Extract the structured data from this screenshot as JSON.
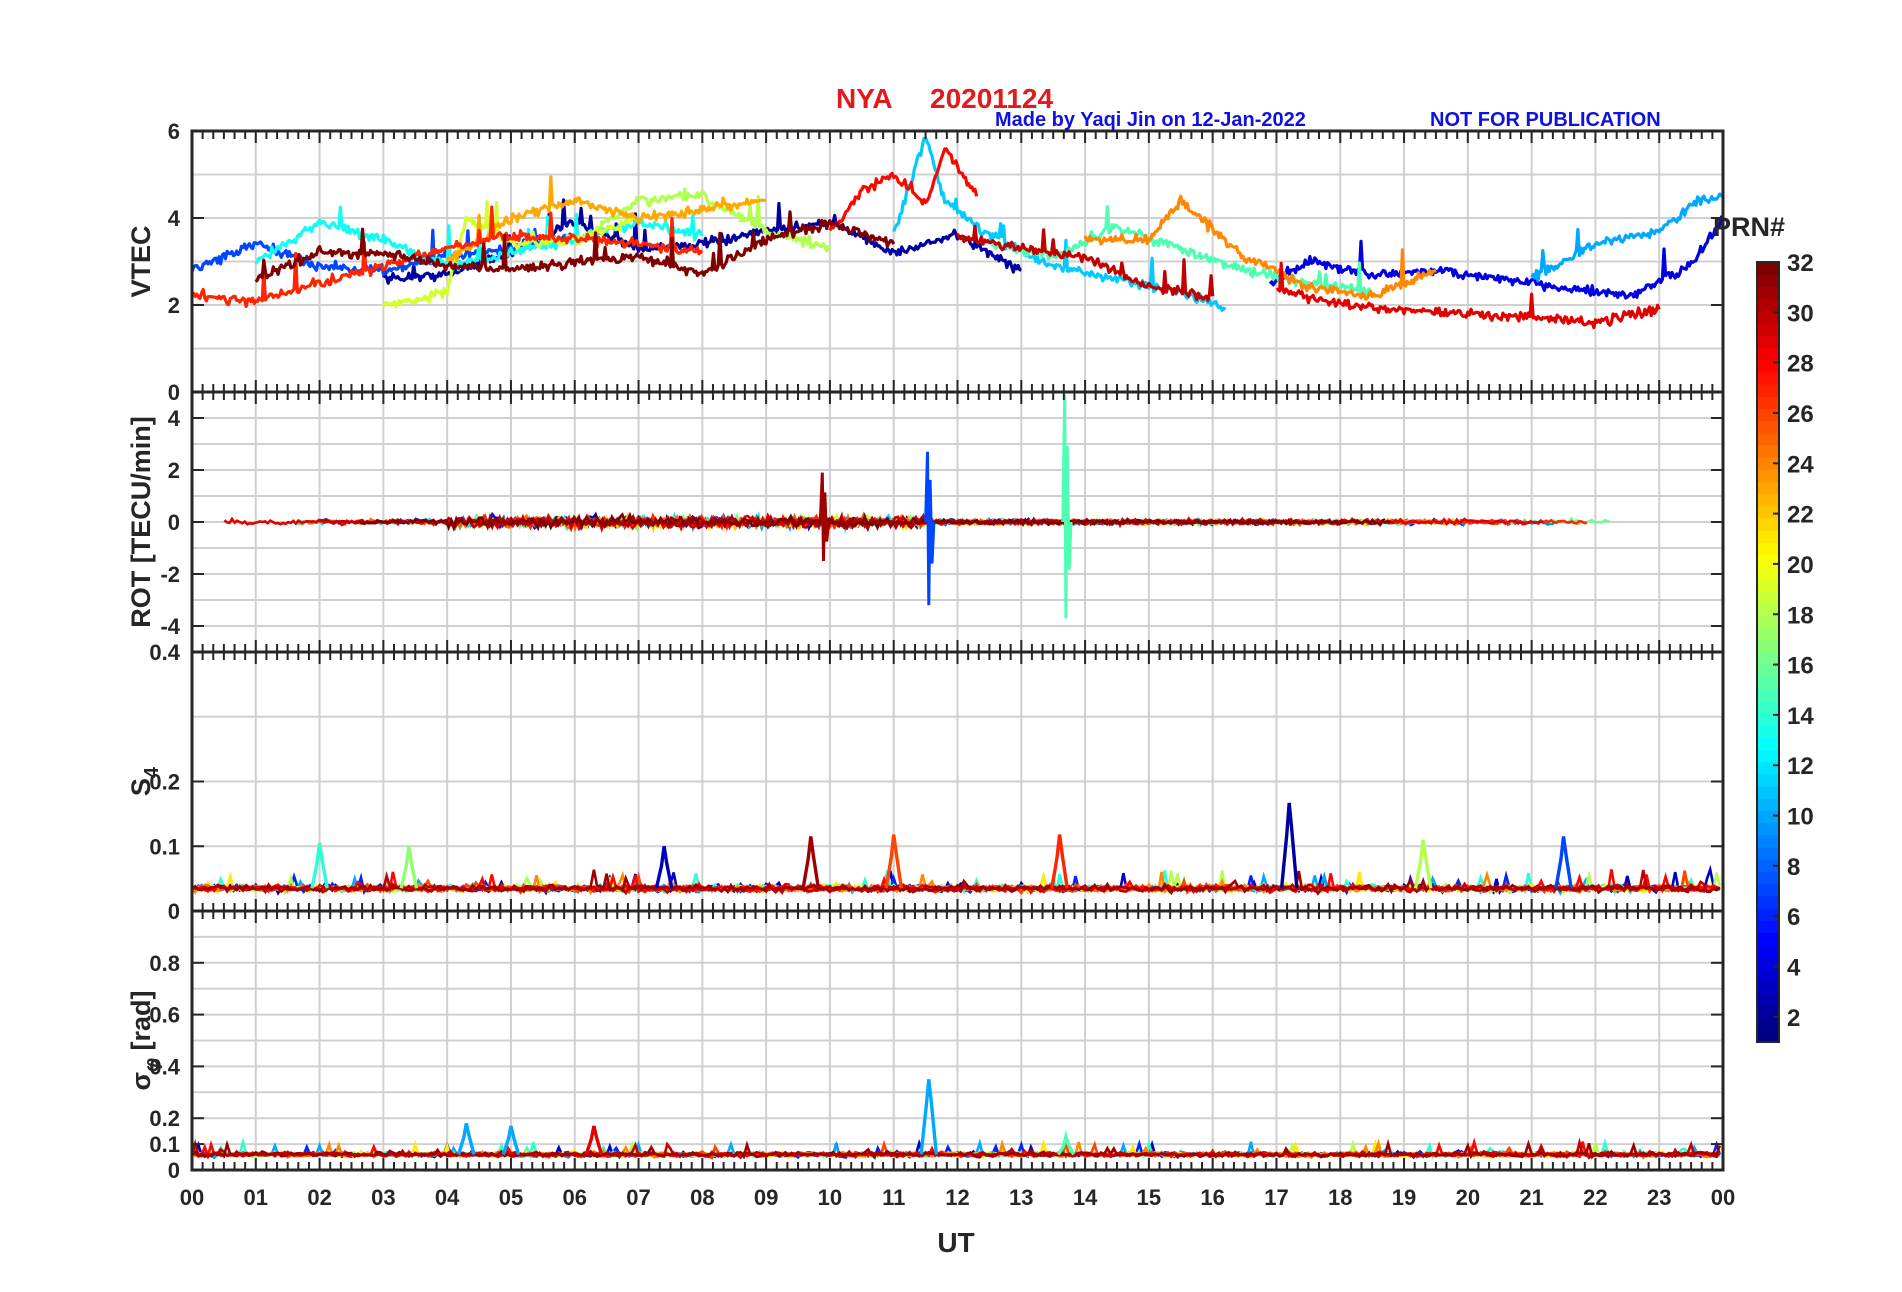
{
  "header": {
    "station": "NYA",
    "date": "20201124",
    "credit": "Made by Yaqi Jin on 12-Jan-2022",
    "notice": "NOT FOR PUBLICATION",
    "title_color": "#e31a1c",
    "credit_color": "#1010e0"
  },
  "x_axis": {
    "label": "UT",
    "ticks": [
      "00",
      "01",
      "02",
      "03",
      "04",
      "05",
      "06",
      "07",
      "08",
      "09",
      "10",
      "11",
      "12",
      "13",
      "14",
      "15",
      "16",
      "17",
      "18",
      "19",
      "20",
      "21",
      "22",
      "23",
      "00"
    ],
    "range": [
      0,
      24
    ]
  },
  "colorbar": {
    "title": "PRN#",
    "range": [
      1,
      32
    ],
    "ticks": [
      "2",
      "4",
      "6",
      "8",
      "10",
      "12",
      "14",
      "16",
      "18",
      "20",
      "22",
      "24",
      "26",
      "28",
      "30",
      "32"
    ],
    "colormap": "jet"
  },
  "panels": [
    {
      "id": "vtec",
      "ylabel": "VTEC",
      "ylim": [
        0,
        6
      ],
      "ticks": [
        "0",
        "2",
        "4",
        "6"
      ]
    },
    {
      "id": "rot",
      "ylabel": "ROT [TECU/min]",
      "ylim": [
        -5,
        5
      ],
      "ticks": [
        "-4",
        "-2",
        "0",
        "2",
        "4"
      ]
    },
    {
      "id": "s4",
      "ylabel": "S4",
      "ylim": [
        0,
        0.4
      ],
      "ticks": [
        "0",
        "0.1",
        "0.2",
        "0.4"
      ]
    },
    {
      "id": "sigma",
      "ylabel": "σφ [rad]",
      "ylim": [
        0,
        1
      ],
      "ticks": [
        "0",
        "0.1",
        "0.2",
        "0.4",
        "0.6",
        "0.8"
      ]
    }
  ],
  "chart_data": [
    {
      "type": "line",
      "title": "NYA 20201124",
      "xlabel": "UT",
      "ylabel": "VTEC",
      "xlim": [
        0,
        24
      ],
      "ylim": [
        0,
        6
      ],
      "grid": true,
      "series_label_source": "PRN colorbar",
      "series": [
        {
          "prn": 2,
          "x": [
            3.0,
            4.0,
            5.0,
            6.0,
            7.0,
            8.0,
            9.0,
            10.0,
            11.0,
            12.0,
            13.0
          ],
          "values": [
            2.6,
            2.7,
            3.2,
            3.9,
            3.3,
            3.4,
            3.7,
            3.9,
            3.2,
            3.6,
            2.8
          ]
        },
        {
          "prn": 4,
          "x": [
            16.9,
            17.5,
            18.5,
            19.5,
            20.5,
            21.5,
            22.5,
            23.5,
            24.0
          ],
          "values": [
            2.5,
            3.0,
            2.7,
            2.8,
            2.6,
            2.4,
            2.2,
            2.9,
            4.0
          ]
        },
        {
          "prn": 7,
          "x": [
            0.0,
            1.0,
            2.0,
            3.0,
            4.0,
            5.0,
            6.0
          ],
          "values": [
            2.8,
            3.4,
            2.9,
            2.8,
            3.1,
            3.3,
            3.6
          ]
        },
        {
          "prn": 10,
          "x": [
            21.0,
            22.0,
            23.0,
            23.6,
            24.0
          ],
          "values": [
            2.6,
            3.4,
            3.7,
            4.4,
            4.5
          ]
        },
        {
          "prn": 11,
          "x": [
            11.0,
            11.5,
            11.8,
            12.5,
            13.5,
            14.5,
            15.5,
            16.2
          ],
          "values": [
            3.6,
            5.9,
            4.4,
            3.6,
            2.9,
            2.6,
            2.3,
            1.9
          ]
        },
        {
          "prn": 13,
          "x": [
            1.0,
            2.0,
            3.0,
            4.0,
            5.0,
            6.0,
            7.0,
            8.0
          ],
          "values": [
            3.0,
            3.9,
            3.5,
            2.9,
            3.2,
            3.5,
            3.9,
            3.6
          ]
        },
        {
          "prn": 15,
          "x": [
            12.5,
            13.5,
            14.5,
            15.5,
            16.5,
            17.5,
            18.5
          ],
          "values": [
            3.4,
            3.1,
            3.8,
            3.3,
            2.8,
            2.5,
            2.3
          ]
        },
        {
          "prn": 18,
          "x": [
            6.0,
            7.0,
            8.0,
            9.0,
            10.0
          ],
          "values": [
            3.4,
            4.4,
            4.5,
            3.7,
            3.3
          ]
        },
        {
          "prn": 19,
          "x": [
            3.0,
            4.0,
            4.3,
            5.0,
            6.0,
            7.0
          ],
          "values": [
            2.0,
            2.3,
            4.0,
            3.4,
            3.5,
            4.0
          ]
        },
        {
          "prn": 23,
          "x": [
            4.0,
            5.0,
            6.0,
            7.0,
            8.0,
            9.0
          ],
          "values": [
            3.0,
            4.0,
            4.4,
            4.0,
            4.2,
            4.4
          ]
        },
        {
          "prn": 24,
          "x": [
            14.0,
            15.0,
            15.5,
            16.5,
            17.5,
            18.5,
            19.5
          ],
          "values": [
            3.5,
            3.5,
            4.4,
            3.1,
            2.4,
            2.2,
            2.8
          ]
        },
        {
          "prn": 27,
          "x": [
            0.0,
            1.0,
            2.0,
            3.0,
            4.0,
            5.0,
            6.0,
            7.0,
            8.0
          ],
          "values": [
            2.2,
            2.1,
            2.5,
            2.9,
            3.3,
            3.6,
            3.5,
            3.4,
            3.2
          ]
        },
        {
          "prn": 28,
          "x": [
            10.0,
            10.5,
            11.0,
            11.5,
            11.8,
            12.3
          ],
          "values": [
            3.7,
            4.6,
            5.0,
            4.3,
            5.6,
            4.5
          ]
        },
        {
          "prn": 29,
          "x": [
            17.0,
            18.0,
            19.0,
            20.0,
            21.0,
            22.0,
            23.0
          ],
          "values": [
            2.4,
            2.0,
            1.9,
            1.8,
            1.7,
            1.6,
            1.9
          ]
        },
        {
          "prn": 30,
          "x": [
            12.0,
            13.0,
            14.0,
            15.0,
            16.0
          ],
          "values": [
            3.6,
            3.3,
            3.1,
            2.4,
            2.2
          ]
        },
        {
          "prn": 32,
          "x": [
            1.0,
            2.0,
            3.0,
            4.0,
            5.0,
            6.0,
            7.0,
            8.0,
            9.0,
            10.0,
            11.0
          ],
          "values": [
            2.6,
            3.2,
            3.2,
            2.9,
            2.8,
            3.0,
            3.1,
            2.7,
            3.5,
            3.9,
            3.4
          ]
        }
      ]
    },
    {
      "type": "line",
      "ylabel": "ROT [TECU/min]",
      "xlim": [
        0,
        24
      ],
      "ylim": [
        -5,
        5
      ],
      "grid": true,
      "notable_spikes": [
        {
          "x": 11.55,
          "max": 2.7,
          "min": -3.2,
          "prn": 7
        },
        {
          "x": 13.7,
          "max": 4.9,
          "min": -3.7,
          "prn": 15
        },
        {
          "x": 9.9,
          "max": 1.9,
          "min": -1.5,
          "prn": 31
        }
      ]
    },
    {
      "type": "line",
      "ylabel": "S4",
      "xlim": [
        0,
        24
      ],
      "ylim": [
        0,
        0.4
      ],
      "grid": true,
      "baseline": 0.035,
      "notable_peaks": [
        {
          "x": 2.0,
          "value": 0.105,
          "prn": 14
        },
        {
          "x": 3.4,
          "value": 0.1,
          "prn": 17
        },
        {
          "x": 7.4,
          "value": 0.1,
          "prn": 3
        },
        {
          "x": 9.7,
          "value": 0.115,
          "prn": 31
        },
        {
          "x": 11.0,
          "value": 0.118,
          "prn": 26
        },
        {
          "x": 13.6,
          "value": 0.118,
          "prn": 27
        },
        {
          "x": 17.2,
          "value": 0.167,
          "prn": 2
        },
        {
          "x": 19.3,
          "value": 0.11,
          "prn": 18
        },
        {
          "x": 21.5,
          "value": 0.115,
          "prn": 7
        }
      ]
    },
    {
      "type": "line",
      "ylabel": "σφ [rad]",
      "xlim": [
        0,
        24
      ],
      "ylim": [
        0,
        1
      ],
      "grid": true,
      "baseline": 0.06,
      "notable_peaks": [
        {
          "x": 4.3,
          "value": 0.18,
          "prn": 10
        },
        {
          "x": 5.0,
          "value": 0.17,
          "prn": 10
        },
        {
          "x": 6.3,
          "value": 0.17,
          "prn": 29
        },
        {
          "x": 11.55,
          "value": 0.35,
          "prn": 10
        },
        {
          "x": 13.7,
          "value": 0.13,
          "prn": 15
        }
      ]
    }
  ]
}
